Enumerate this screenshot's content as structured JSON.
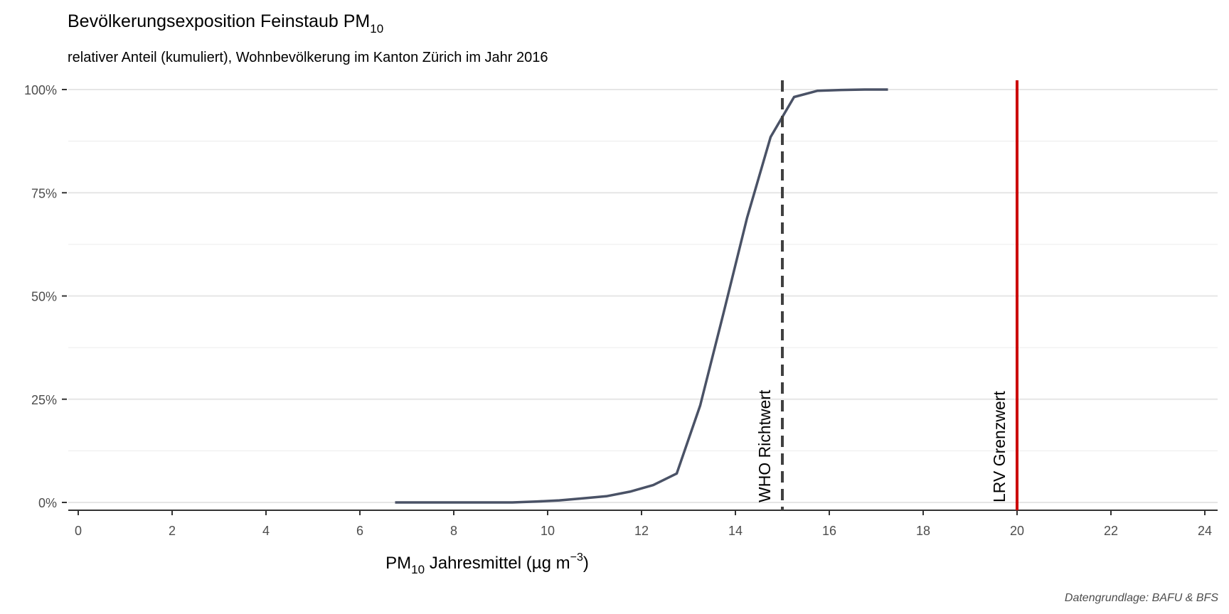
{
  "chart_data": {
    "type": "line",
    "title": "Bevölkerungsexposition Feinstaub PM",
    "title_subscript": "10",
    "subtitle": "relativer Anteil (kumuliert), Wohnbevölkerung im Kanton Zürich im Jahr 2016",
    "xlabel": {
      "prefix": "PM",
      "subscript": "10",
      "middle": " Jahresmittel (µg m",
      "superscript": "−3",
      "suffix": ")"
    },
    "ylabel": "",
    "xlim": [
      0,
      24
    ],
    "ylim": [
      0,
      1
    ],
    "x_ticks": [
      0,
      2,
      4,
      6,
      8,
      10,
      12,
      14,
      16,
      18,
      20,
      22,
      24
    ],
    "x_tick_labels": [
      "0",
      "2",
      "4",
      "6",
      "8",
      "10",
      "12",
      "14",
      "16",
      "18",
      "20",
      "22",
      "24"
    ],
    "y_ticks": [
      0,
      0.25,
      0.5,
      0.75,
      1
    ],
    "y_tick_labels": [
      "0%",
      "25%",
      "50%",
      "75%",
      "100%"
    ],
    "grid": true,
    "series": [
      {
        "color": "#4a5266",
        "x": [
          6.75,
          7.25,
          7.75,
          8.25,
          8.75,
          9.25,
          9.75,
          10.25,
          10.75,
          11.25,
          11.75,
          12.25,
          12.75,
          13.25,
          13.75,
          14.25,
          14.75,
          15.25,
          15.75,
          16.25,
          16.75,
          17.25
        ],
        "y": [
          0,
          0,
          0,
          0,
          0,
          0,
          0.002,
          0.005,
          0.01,
          0.015,
          0.026,
          0.042,
          0.07,
          0.235,
          0.46,
          0.69,
          0.885,
          0.982,
          0.997,
          0.999,
          1.0,
          1.0
        ]
      }
    ],
    "reference_lines": [
      {
        "x": 15,
        "label": "WHO Richtwert",
        "style": "dashed",
        "color": "#404040"
      },
      {
        "x": 20,
        "label": "LRV Grenzwert",
        "style": "solid",
        "color": "#cc0000"
      }
    ],
    "caption": "Datengrundlage: BAFU & BFS"
  }
}
